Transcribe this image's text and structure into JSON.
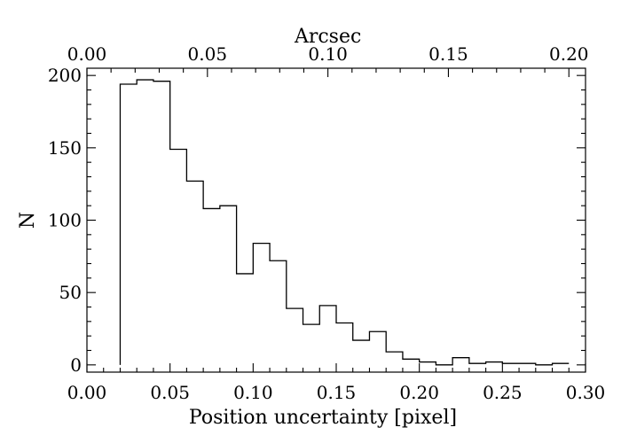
{
  "chart_data": {
    "type": "histogram",
    "title": "",
    "xlabel": "Position uncertainty [pixel]",
    "ylabel": "N",
    "top_xlabel": "Arcsec",
    "xlim": [
      0.0,
      0.3
    ],
    "ylim": [
      -5,
      205
    ],
    "top_xlim": [
      0.0,
      0.2069
    ],
    "x_ticks": [
      {
        "value": 0.0,
        "label": "0.00"
      },
      {
        "value": 0.05,
        "label": "0.05"
      },
      {
        "value": 0.1,
        "label": "0.10"
      },
      {
        "value": 0.15,
        "label": "0.15"
      },
      {
        "value": 0.2,
        "label": "0.20"
      },
      {
        "value": 0.25,
        "label": "0.25"
      },
      {
        "value": 0.3,
        "label": "0.30"
      }
    ],
    "y_ticks": [
      {
        "value": 0,
        "label": "0"
      },
      {
        "value": 50,
        "label": "50"
      },
      {
        "value": 100,
        "label": "100"
      },
      {
        "value": 150,
        "label": "150"
      },
      {
        "value": 200,
        "label": "200"
      }
    ],
    "top_x_ticks": [
      {
        "value": 0.0,
        "label": "0.00"
      },
      {
        "value": 0.05,
        "label": "0.05"
      },
      {
        "value": 0.1,
        "label": "0.10"
      },
      {
        "value": 0.15,
        "label": "0.15"
      },
      {
        "value": 0.2,
        "label": "0.20"
      }
    ],
    "bin_edges": [
      0.02,
      0.03,
      0.04,
      0.05,
      0.06,
      0.07,
      0.08,
      0.09,
      0.1,
      0.11,
      0.12,
      0.13,
      0.14,
      0.15,
      0.16,
      0.17,
      0.18,
      0.19,
      0.2,
      0.21,
      0.22,
      0.23,
      0.24,
      0.25,
      0.26,
      0.27,
      0.28,
      0.29
    ],
    "counts": [
      194,
      197,
      196,
      149,
      127,
      108,
      110,
      63,
      84,
      72,
      39,
      28,
      41,
      29,
      17,
      23,
      9,
      4,
      2,
      0,
      5,
      1,
      2,
      1,
      1,
      0,
      1
    ]
  }
}
